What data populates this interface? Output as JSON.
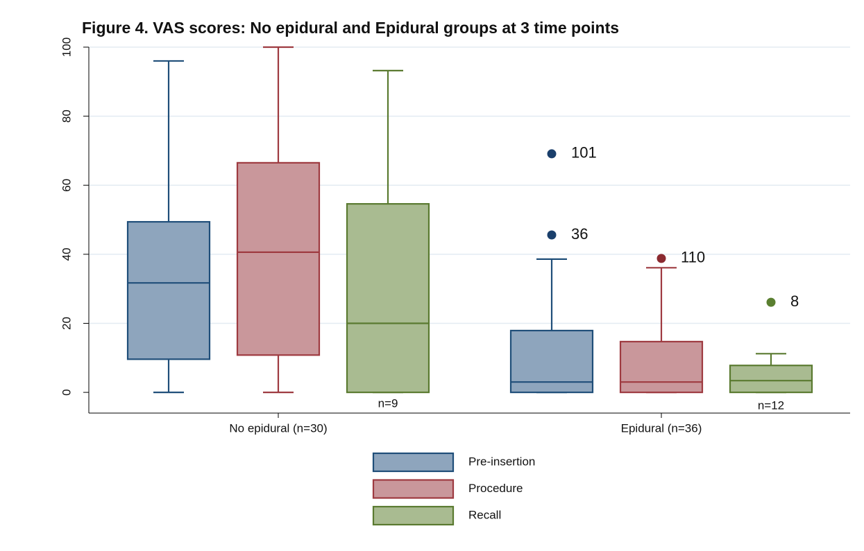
{
  "chart_data": {
    "type": "box",
    "title": "Figure 4.  VAS scores:  No epidural and Epidural groups at 3 time points",
    "categories": [
      "No epidural (n=30)",
      "Epidural (n=36)"
    ],
    "series": [
      {
        "name": "Pre-insertion",
        "color": "#8ea5bd",
        "stroke": "#1f4e79",
        "outlier_color": "#1a3f6b",
        "boxes": [
          {
            "min": 0,
            "q1": 9.6,
            "median": 31.7,
            "q3": 49.4,
            "max": 96
          },
          {
            "min": 0,
            "q1": 0,
            "median": 3,
            "q3": 17.9,
            "max": 38.6
          }
        ],
        "outliers": [
          [],
          [
            {
              "value": 69.1,
              "label": "101"
            },
            {
              "value": 45.6,
              "label": "36"
            }
          ]
        ]
      },
      {
        "name": "Procedure",
        "color": "#c9979b",
        "stroke": "#9e3a40",
        "outlier_color": "#8b2a30",
        "boxes": [
          {
            "min": 0,
            "q1": 10.8,
            "median": 40.6,
            "q3": 66.5,
            "max": 100
          },
          {
            "min": 0,
            "q1": 0,
            "median": 3,
            "q3": 14.7,
            "max": 36.1
          }
        ],
        "outliers": [
          [],
          [
            {
              "value": 38.8,
              "label": "110"
            }
          ]
        ]
      },
      {
        "name": "Recall",
        "color": "#a9bb91",
        "stroke": "#5a7a30",
        "outlier_color": "#5a7f30",
        "boxes": [
          {
            "min": 0,
            "q1": 0,
            "median": 20,
            "q3": 54.6,
            "max": 93.2
          },
          {
            "min": 0,
            "q1": 0,
            "median": 3.4,
            "q3": 7.8,
            "max": 11.2
          }
        ],
        "outliers": [
          [],
          [
            {
              "value": 26.1,
              "label": "8"
            }
          ]
        ]
      }
    ],
    "annotations": [
      "n=9",
      "n=12"
    ],
    "ylim": [
      -6,
      100
    ],
    "yticks": [
      0,
      20,
      40,
      60,
      80,
      100
    ],
    "grid": true
  }
}
